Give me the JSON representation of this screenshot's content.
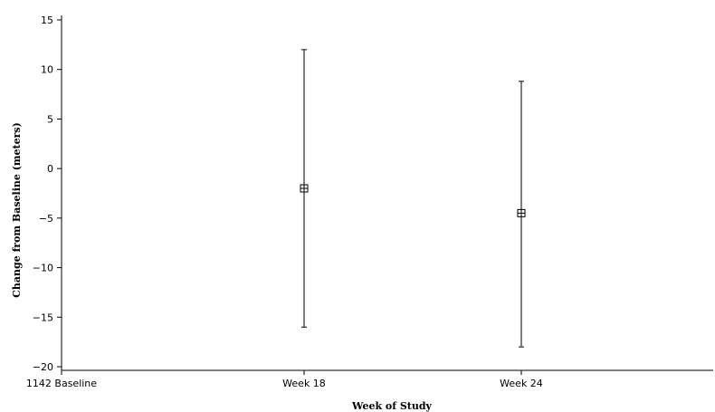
{
  "chart_data": {
    "type": "scatter",
    "title": "",
    "xlabel": "Week of Study",
    "ylabel": "Change from Baseline (meters)",
    "categories": [
      "1142 Baseline",
      "Week 18",
      "Week 24"
    ],
    "ylim": [
      -20,
      15
    ],
    "yticks": [
      15,
      10,
      5,
      0,
      -5,
      -10,
      -15,
      -20
    ],
    "ytick_labels": [
      "15",
      "10",
      "5",
      "0",
      "−5",
      "−10",
      "−15",
      "−20"
    ],
    "grid": false,
    "legend": "none",
    "marker": "squared-plus",
    "series": [
      {
        "points": [
          {
            "category": "Week 18",
            "mean": -2.0,
            "lower": -16.0,
            "upper": 12.0
          },
          {
            "category": "Week 24",
            "mean": -4.5,
            "lower": -18.0,
            "upper": 8.8
          }
        ]
      }
    ]
  }
}
